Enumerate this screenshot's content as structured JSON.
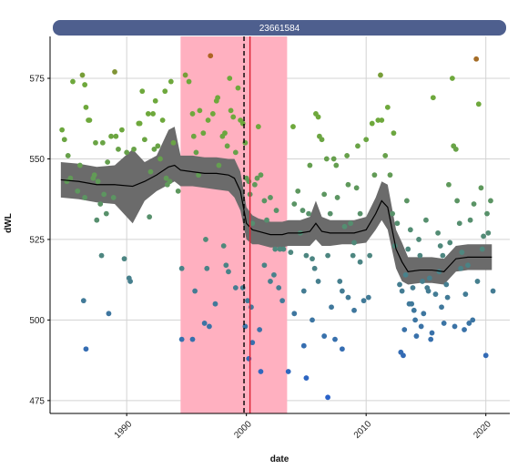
{
  "chart_data": {
    "type": "scatter",
    "title": "",
    "panel_label": "23661584",
    "xlabel": "date",
    "ylabel": "dWL",
    "xlim": [
      1983.6,
      2022.0
    ],
    "ylim": [
      471.0,
      588.0
    ],
    "x_ticks": [
      1990,
      2000,
      2010,
      2020
    ],
    "y_ticks": [
      475,
      500,
      525,
      550,
      575
    ],
    "grid": true,
    "colors": {
      "strip_fill": "#4e5f8e",
      "band_fill": "#ffb0c0",
      "ribbon_fill": "#6b6b6b",
      "smooth_line": "#000000",
      "dashed_line": "#000000",
      "red_line": "#dd2233",
      "point_high": "#c0501c",
      "point_mid": "#6ea83c",
      "point_low": "#2a62c8",
      "grid": "#d3d3d3"
    },
    "highlight_band": {
      "x_start": 1994.5,
      "x_end": 2003.4
    },
    "vertical_lines": [
      {
        "x": 1999.8,
        "style": "dashed"
      },
      {
        "x": 2000.3,
        "style": "solid"
      }
    ],
    "smooth": {
      "x": [
        1984.5,
        1986.0,
        1987.5,
        1989.0,
        1990.5,
        1991.5,
        1992.5,
        1993.5,
        1994.0,
        1994.5,
        1995.5,
        1996.5,
        1997.5,
        1998.5,
        1999.0,
        1999.5,
        2000.0,
        2000.5,
        2001.0,
        2002.0,
        2003.0,
        2003.5,
        2004.5,
        2005.3,
        2005.8,
        2006.3,
        2007.0,
        2008.0,
        2009.0,
        2010.0,
        2010.8,
        2011.3,
        2011.8,
        2012.5,
        2013.0,
        2013.5,
        2014.5,
        2015.5,
        2016.5,
        2017.0,
        2017.5,
        2018.5,
        2019.5,
        2020.5
      ],
      "y": [
        543.5,
        543.0,
        542.0,
        542.0,
        541.5,
        543.0,
        545.0,
        547.5,
        548.0,
        546.5,
        546.0,
        545.5,
        545.5,
        545.0,
        544.0,
        540.0,
        530.0,
        528.0,
        527.5,
        526.5,
        526.5,
        527.0,
        527.0,
        527.5,
        530.0,
        527.5,
        527.0,
        527.0,
        527.0,
        528.0,
        533.0,
        537.0,
        535.0,
        522.0,
        518.0,
        515.0,
        515.5,
        515.5,
        515.0,
        517.0,
        519.0,
        519.5,
        519.5,
        519.5
      ],
      "lower": [
        538.0,
        537.5,
        536.5,
        536.0,
        530.0,
        537.0,
        540.0,
        542.0,
        543.0,
        541.5,
        541.5,
        541.0,
        540.5,
        540.0,
        538.0,
        534.0,
        525.0,
        523.5,
        523.5,
        522.5,
        522.5,
        523.0,
        523.0,
        523.0,
        525.0,
        523.0,
        523.0,
        523.5,
        523.5,
        524.0,
        528.0,
        531.0,
        528.0,
        516.0,
        512.0,
        511.0,
        511.5,
        511.5,
        511.0,
        513.0,
        515.0,
        515.5,
        515.5,
        515.5
      ],
      "upper": [
        549.0,
        548.5,
        547.5,
        548.0,
        553.0,
        549.0,
        551.0,
        559.0,
        560.0,
        551.0,
        551.0,
        550.5,
        550.5,
        550.0,
        550.0,
        546.0,
        535.0,
        532.5,
        531.5,
        530.5,
        530.5,
        531.0,
        531.0,
        532.0,
        537.0,
        532.0,
        531.0,
        531.0,
        531.0,
        532.0,
        538.0,
        543.0,
        542.0,
        528.0,
        524.0,
        519.5,
        519.5,
        519.5,
        519.0,
        521.0,
        523.0,
        523.5,
        523.5,
        523.5
      ]
    },
    "points": [
      [
        1984.6,
        559
      ],
      [
        1984.8,
        556
      ],
      [
        1985.1,
        551
      ],
      [
        1985.3,
        544
      ],
      [
        1985.5,
        574
      ],
      [
        1985.9,
        540
      ],
      [
        1986.1,
        548
      ],
      [
        1986.3,
        576
      ],
      [
        1986.5,
        573
      ],
      [
        1986.6,
        566
      ],
      [
        1986.8,
        562
      ],
      [
        1986.9,
        562
      ],
      [
        1987.2,
        544
      ],
      [
        1987.4,
        555
      ],
      [
        1987.6,
        543
      ],
      [
        1987.8,
        536
      ],
      [
        1988.0,
        555
      ],
      [
        1988.1,
        539
      ],
      [
        1988.3,
        533
      ],
      [
        1988.4,
        549
      ],
      [
        1988.7,
        557
      ],
      [
        1988.9,
        538
      ],
      [
        1989.0,
        577
      ],
      [
        1989.1,
        557
      ],
      [
        1989.3,
        553
      ],
      [
        1989.6,
        559
      ],
      [
        1989.8,
        519
      ],
      [
        1990.0,
        552
      ],
      [
        1990.2,
        513
      ],
      [
        1990.3,
        512
      ],
      [
        1990.6,
        553
      ],
      [
        1991.0,
        561
      ],
      [
        1991.1,
        561
      ],
      [
        1991.3,
        571
      ],
      [
        1991.5,
        556
      ],
      [
        1991.8,
        564
      ],
      [
        1992.0,
        546
      ],
      [
        1992.2,
        564
      ],
      [
        1992.4,
        568
      ],
      [
        1992.6,
        554
      ],
      [
        1992.8,
        550
      ],
      [
        1993.0,
        562
      ],
      [
        1993.2,
        571
      ],
      [
        1993.4,
        542
      ],
      [
        1993.6,
        543
      ],
      [
        1993.9,
        555
      ],
      [
        1985.0,
        543
      ],
      [
        1986.5,
        538
      ],
      [
        1987.5,
        531
      ],
      [
        1987.9,
        520
      ],
      [
        1986.4,
        506
      ],
      [
        1988.5,
        502
      ],
      [
        1986.6,
        491
      ],
      [
        1987.3,
        545
      ],
      [
        1992.3,
        553
      ],
      [
        1993.3,
        544
      ],
      [
        1991.9,
        532
      ],
      [
        1993.7,
        574
      ],
      [
        1994.3,
        540
      ],
      [
        1994.6,
        494
      ],
      [
        1994.9,
        576
      ],
      [
        1995.2,
        574
      ],
      [
        1995.5,
        564
      ],
      [
        1995.6,
        557
      ],
      [
        1995.8,
        552
      ],
      [
        1996.0,
        545
      ],
      [
        1996.1,
        565
      ],
      [
        1996.4,
        558
      ],
      [
        1996.6,
        525
      ],
      [
        1996.8,
        562
      ],
      [
        1996.9,
        498
      ],
      [
        1997.0,
        582
      ],
      [
        1997.2,
        564
      ],
      [
        1997.5,
        568
      ],
      [
        1997.6,
        569
      ],
      [
        1997.7,
        548
      ],
      [
        1998.0,
        557
      ],
      [
        1998.2,
        558
      ],
      [
        1998.4,
        554
      ],
      [
        1998.6,
        575
      ],
      [
        1998.7,
        565
      ],
      [
        1998.9,
        563
      ],
      [
        1999.1,
        552
      ],
      [
        1999.3,
        572
      ],
      [
        1999.5,
        562
      ],
      [
        1999.7,
        561
      ],
      [
        1999.9,
        555
      ],
      [
        2000.0,
        544
      ],
      [
        2000.2,
        543
      ],
      [
        2000.3,
        539
      ],
      [
        2000.5,
        530
      ],
      [
        2000.7,
        542
      ],
      [
        2000.9,
        544
      ],
      [
        2001.0,
        560
      ],
      [
        2001.2,
        545
      ],
      [
        2001.5,
        537
      ],
      [
        2001.7,
        531
      ],
      [
        2002.0,
        538
      ],
      [
        2002.4,
        522
      ],
      [
        2002.5,
        534
      ],
      [
        2002.8,
        522
      ],
      [
        2003.1,
        522
      ],
      [
        1995.7,
        509
      ],
      [
        1996.7,
        516
      ],
      [
        1997.4,
        505
      ],
      [
        1998.1,
        523
      ],
      [
        1998.5,
        515
      ],
      [
        1999.1,
        510
      ],
      [
        2000.1,
        506
      ],
      [
        2000.4,
        504
      ],
      [
        2001.1,
        497
      ],
      [
        2001.5,
        517
      ],
      [
        2002.0,
        512
      ],
      [
        2002.7,
        510
      ],
      [
        2003.0,
        506
      ],
      [
        1994.6,
        516
      ],
      [
        2000.5,
        493
      ],
      [
        2001.2,
        484
      ],
      [
        2002.3,
        514
      ],
      [
        1999.7,
        510
      ],
      [
        1998.3,
        517
      ],
      [
        1996.5,
        499
      ],
      [
        1995.5,
        494
      ],
      [
        1999.9,
        498
      ],
      [
        2000.2,
        488
      ],
      [
        2003.7,
        521
      ],
      [
        2003.9,
        560
      ],
      [
        2004.0,
        536
      ],
      [
        2004.3,
        540
      ],
      [
        2004.5,
        527
      ],
      [
        2004.7,
        534
      ],
      [
        2004.8,
        509
      ],
      [
        2005.0,
        520
      ],
      [
        2005.2,
        533
      ],
      [
        2005.3,
        548
      ],
      [
        2005.5,
        519
      ],
      [
        2005.7,
        516
      ],
      [
        2005.8,
        564
      ],
      [
        2006.0,
        563
      ],
      [
        2006.1,
        557
      ],
      [
        2006.3,
        556
      ],
      [
        2006.5,
        539
      ],
      [
        2006.7,
        550
      ],
      [
        2006.8,
        520
      ],
      [
        2007.0,
        533
      ],
      [
        2007.1,
        504
      ],
      [
        2007.3,
        550
      ],
      [
        2007.5,
        548
      ],
      [
        2007.6,
        538
      ],
      [
        2007.8,
        512
      ],
      [
        2008.0,
        509
      ],
      [
        2008.2,
        529
      ],
      [
        2008.4,
        551
      ],
      [
        2008.5,
        542
      ],
      [
        2008.7,
        530
      ],
      [
        2008.9,
        520
      ],
      [
        2009.0,
        524
      ],
      [
        2009.2,
        541
      ],
      [
        2009.3,
        554
      ],
      [
        2009.5,
        533
      ],
      [
        2009.8,
        506
      ],
      [
        2010.0,
        556
      ],
      [
        2010.3,
        520
      ],
      [
        2010.5,
        561
      ],
      [
        2010.7,
        545
      ],
      [
        2011.0,
        562
      ],
      [
        2011.2,
        576
      ],
      [
        2011.3,
        562
      ],
      [
        2011.6,
        551
      ],
      [
        2011.8,
        566
      ],
      [
        2012.0,
        545
      ],
      [
        2012.2,
        533
      ],
      [
        2003.5,
        484
      ],
      [
        2004.0,
        502
      ],
      [
        2004.8,
        492
      ],
      [
        2005.0,
        482
      ],
      [
        2005.5,
        500
      ],
      [
        2006.0,
        512
      ],
      [
        2006.5,
        495
      ],
      [
        2006.8,
        476
      ],
      [
        2007.4,
        494
      ],
      [
        2008.0,
        491
      ],
      [
        2008.5,
        507
      ],
      [
        2009.0,
        503
      ],
      [
        2009.5,
        518
      ],
      [
        2010.2,
        507
      ],
      [
        2012.3,
        558
      ],
      [
        2012.4,
        523
      ],
      [
        2012.6,
        530
      ],
      [
        2012.8,
        511
      ],
      [
        2013.0,
        509
      ],
      [
        2013.1,
        489
      ],
      [
        2013.2,
        497
      ],
      [
        2013.4,
        537
      ],
      [
        2013.5,
        522
      ],
      [
        2013.7,
        528
      ],
      [
        2013.8,
        505
      ],
      [
        2014.0,
        503
      ],
      [
        2014.1,
        500
      ],
      [
        2014.2,
        495
      ],
      [
        2014.4,
        525
      ],
      [
        2014.5,
        520
      ],
      [
        2014.6,
        498
      ],
      [
        2014.8,
        502
      ],
      [
        2015.0,
        531
      ],
      [
        2015.1,
        510
      ],
      [
        2015.3,
        513
      ],
      [
        2015.4,
        494
      ],
      [
        2015.6,
        569
      ],
      [
        2015.8,
        508
      ],
      [
        2016.0,
        527
      ],
      [
        2016.2,
        523
      ],
      [
        2016.3,
        504
      ],
      [
        2016.5,
        499
      ],
      [
        2016.7,
        511
      ],
      [
        2016.9,
        542
      ],
      [
        2017.0,
        524
      ],
      [
        2017.2,
        575
      ],
      [
        2017.3,
        554
      ],
      [
        2017.5,
        553
      ],
      [
        2017.6,
        537
      ],
      [
        2017.8,
        530
      ],
      [
        2018.0,
        521
      ],
      [
        2018.2,
        497
      ],
      [
        2018.3,
        508
      ],
      [
        2018.5,
        517
      ],
      [
        2018.7,
        531
      ],
      [
        2018.9,
        500
      ],
      [
        2019.0,
        536
      ],
      [
        2019.2,
        581
      ],
      [
        2019.4,
        567
      ],
      [
        2019.6,
        541
      ],
      [
        2019.8,
        526
      ],
      [
        2020.0,
        489
      ],
      [
        2020.2,
        527
      ],
      [
        2020.4,
        537
      ],
      [
        2020.6,
        509
      ],
      [
        2013.3,
        514
      ],
      [
        2013.9,
        510
      ],
      [
        2014.7,
        512
      ],
      [
        2015.5,
        496
      ],
      [
        2016.1,
        515
      ],
      [
        2016.8,
        507
      ],
      [
        2017.4,
        498
      ],
      [
        2017.9,
        516
      ],
      [
        2018.6,
        499
      ],
      [
        2019.3,
        512
      ],
      [
        2020.1,
        533
      ],
      [
        2012.9,
        490
      ],
      [
        2013.6,
        505
      ],
      [
        2015.2,
        509
      ],
      [
        2016.4,
        520
      ],
      [
        2019.7,
        522
      ]
    ]
  }
}
